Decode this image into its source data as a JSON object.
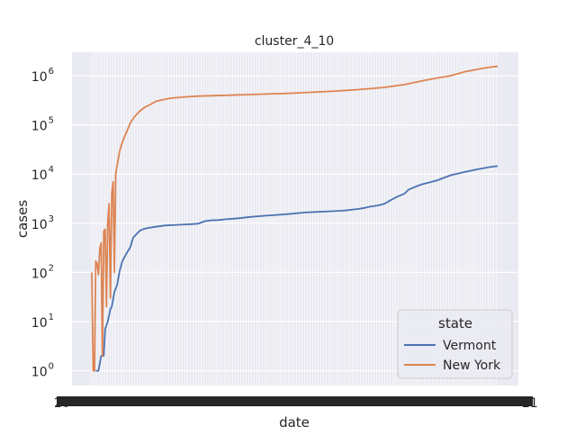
{
  "chart_data": {
    "type": "line",
    "title": "cluster_4_10",
    "xlabel": "date",
    "ylabel": "cases",
    "yscale": "log",
    "ylim": [
      0.5,
      3000000
    ],
    "y_ticks": [
      {
        "value": 1,
        "base": "10",
        "exp": "0"
      },
      {
        "value": 10,
        "base": "10",
        "exp": "1"
      },
      {
        "value": 100,
        "base": "10",
        "exp": "2"
      },
      {
        "value": 1000,
        "base": "10",
        "exp": "3"
      },
      {
        "value": 10000,
        "base": "10",
        "exp": "4"
      },
      {
        "value": 100000,
        "base": "10",
        "exp": "5"
      },
      {
        "value": 1000000,
        "base": "10",
        "exp": "6"
      }
    ],
    "x_tick_start_label": "20",
    "x_tick_end_label": "21",
    "x_range": [
      0,
      305
    ],
    "grid": true,
    "legend": {
      "title": "state",
      "location": "lower-right"
    },
    "series": [
      {
        "name": "Vermont",
        "color": "#4c72b0",
        "points": [
          [
            3,
            1
          ],
          [
            5,
            1
          ],
          [
            7,
            2
          ],
          [
            9,
            2
          ],
          [
            10,
            7
          ],
          [
            12,
            10
          ],
          [
            14,
            18
          ],
          [
            15,
            20
          ],
          [
            17,
            40
          ],
          [
            19,
            55
          ],
          [
            21,
            110
          ],
          [
            23,
            170
          ],
          [
            26,
            240
          ],
          [
            29,
            330
          ],
          [
            31,
            500
          ],
          [
            33,
            580
          ],
          [
            36,
            700
          ],
          [
            38,
            750
          ],
          [
            42,
            800
          ],
          [
            48,
            850
          ],
          [
            55,
            900
          ],
          [
            65,
            930
          ],
          [
            75,
            960
          ],
          [
            80,
            980
          ],
          [
            85,
            1100
          ],
          [
            90,
            1150
          ],
          [
            95,
            1160
          ],
          [
            100,
            1200
          ],
          [
            110,
            1260
          ],
          [
            120,
            1350
          ],
          [
            130,
            1420
          ],
          [
            140,
            1480
          ],
          [
            150,
            1560
          ],
          [
            160,
            1650
          ],
          [
            170,
            1700
          ],
          [
            180,
            1750
          ],
          [
            190,
            1810
          ],
          [
            200,
            1950
          ],
          [
            205,
            2050
          ],
          [
            210,
            2200
          ],
          [
            215,
            2300
          ],
          [
            220,
            2500
          ],
          [
            225,
            3000
          ],
          [
            230,
            3500
          ],
          [
            235,
            4000
          ],
          [
            238,
            4800
          ],
          [
            243,
            5500
          ],
          [
            248,
            6200
          ],
          [
            255,
            6900
          ],
          [
            260,
            7500
          ],
          [
            265,
            8500
          ],
          [
            270,
            9500
          ],
          [
            280,
            11000
          ],
          [
            290,
            12500
          ],
          [
            300,
            14000
          ],
          [
            305,
            14500
          ]
        ]
      },
      {
        "name": "New York",
        "color": "#dd8452",
        "points": [
          [
            0,
            100
          ],
          [
            1,
            1
          ],
          [
            2,
            1
          ],
          [
            3,
            170
          ],
          [
            4,
            150
          ],
          [
            5,
            90
          ],
          [
            6,
            300
          ],
          [
            7,
            400
          ],
          [
            8,
            2
          ],
          [
            9,
            700
          ],
          [
            10,
            750
          ],
          [
            11,
            20
          ],
          [
            12,
            1000
          ],
          [
            13,
            2500
          ],
          [
            14,
            30
          ],
          [
            15,
            4000
          ],
          [
            16,
            7000
          ],
          [
            17,
            100
          ],
          [
            18,
            10000
          ],
          [
            19,
            15000
          ],
          [
            21,
            30000
          ],
          [
            23,
            45000
          ],
          [
            26,
            70000
          ],
          [
            29,
            110000
          ],
          [
            32,
            145000
          ],
          [
            36,
            190000
          ],
          [
            40,
            230000
          ],
          [
            44,
            260000
          ],
          [
            48,
            300000
          ],
          [
            52,
            320000
          ],
          [
            60,
            350000
          ],
          [
            70,
            370000
          ],
          [
            80,
            385000
          ],
          [
            100,
            400000
          ],
          [
            120,
            415000
          ],
          [
            150,
            440000
          ],
          [
            180,
            480000
          ],
          [
            200,
            520000
          ],
          [
            220,
            580000
          ],
          [
            235,
            660000
          ],
          [
            250,
            800000
          ],
          [
            260,
            900000
          ],
          [
            270,
            1000000
          ],
          [
            280,
            1200000
          ],
          [
            290,
            1350000
          ],
          [
            300,
            1500000
          ],
          [
            305,
            1550000
          ]
        ]
      }
    ]
  }
}
